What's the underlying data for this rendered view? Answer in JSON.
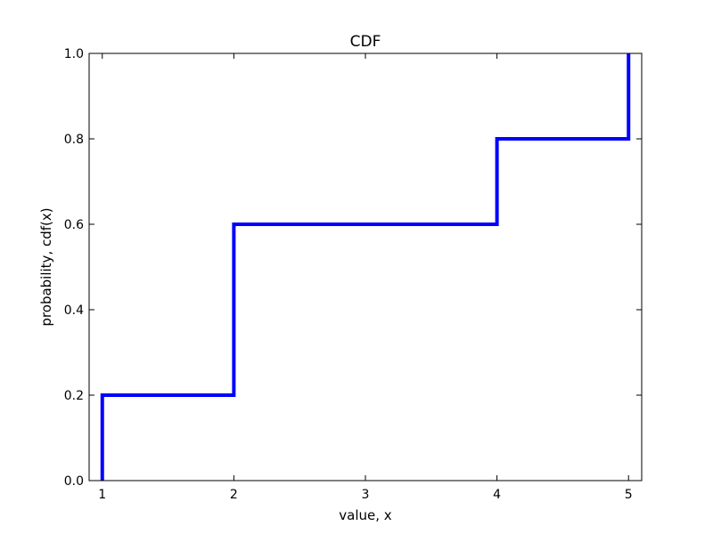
{
  "chart_data": {
    "type": "line",
    "title": "CDF",
    "xlabel": "value, x",
    "ylabel": "probability, cdf(x)",
    "xlim": [
      0.9,
      5.1
    ],
    "ylim": [
      0.0,
      1.0
    ],
    "x_ticks": [
      1,
      2,
      3,
      4,
      5
    ],
    "y_ticks": [
      0.0,
      0.2,
      0.4,
      0.6,
      0.8,
      1.0
    ],
    "x_tick_labels": [
      "1",
      "2",
      "3",
      "4",
      "5"
    ],
    "y_tick_labels": [
      "0.0",
      "0.2",
      "0.4",
      "0.6",
      "0.8",
      "1.0"
    ],
    "grid": false,
    "step": true,
    "series": [
      {
        "color": "#0000ff",
        "points": [
          {
            "x": 1,
            "y": 0.0
          },
          {
            "x": 1,
            "y": 0.2
          },
          {
            "x": 2,
            "y": 0.2
          },
          {
            "x": 2,
            "y": 0.6
          },
          {
            "x": 4,
            "y": 0.6
          },
          {
            "x": 4,
            "y": 0.8
          },
          {
            "x": 5,
            "y": 0.8
          },
          {
            "x": 5,
            "y": 1.0
          }
        ]
      }
    ]
  }
}
